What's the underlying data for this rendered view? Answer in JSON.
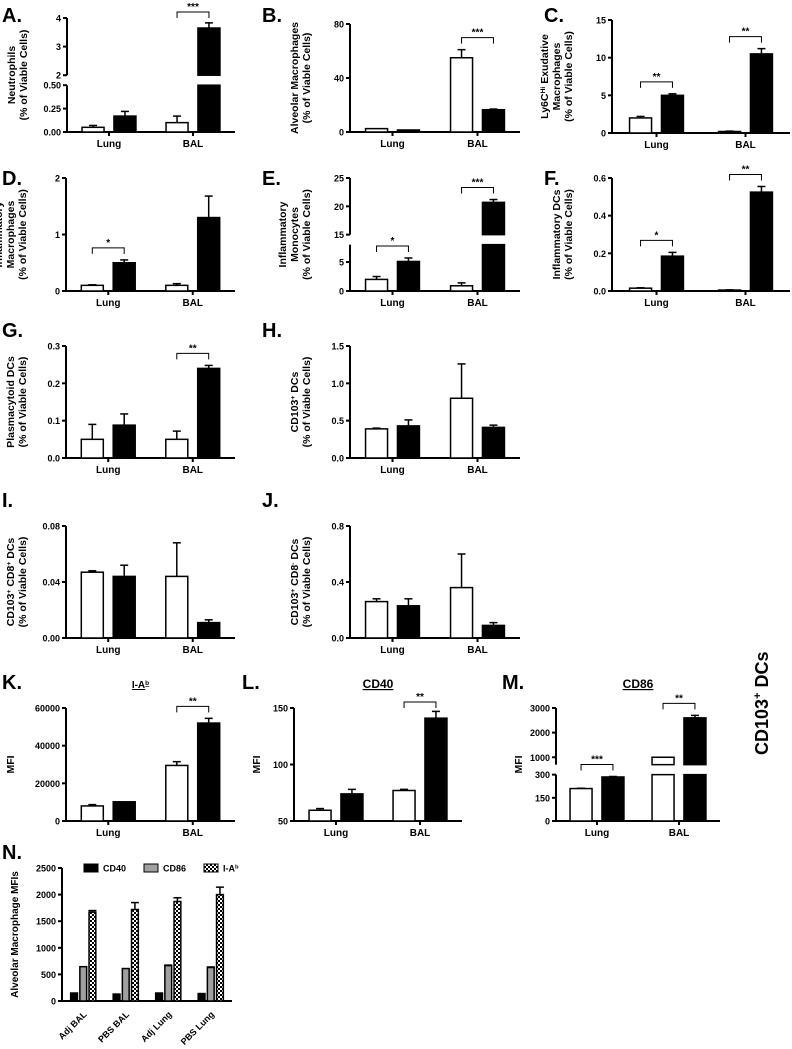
{
  "figure": {
    "side_label": "CD103",
    "side_label_sup": "+",
    "side_label_suffix": " DCs"
  },
  "colors": {
    "open": "#ffffff",
    "filled": "#000000",
    "cd86": "#a0a0a0",
    "axis": "#000000"
  },
  "chart_data": [
    {
      "id": "A",
      "panel_label": "A.",
      "type": "bar",
      "title": "",
      "ylabel_lines": [
        "Neutrophils",
        "(% of Viable Cells)"
      ],
      "categories": [
        "Lung",
        "BAL"
      ],
      "series": [
        {
          "name": "open",
          "values": [
            0.05,
            0.1
          ],
          "errors": [
            0.02,
            0.07
          ]
        },
        {
          "name": "filled",
          "values": [
            0.17,
            3.65
          ],
          "errors": [
            0.05,
            0.18
          ]
        }
      ],
      "broken_axis": {
        "lower": [
          0,
          0.5
        ],
        "upper": [
          2,
          4
        ]
      },
      "yticks_lower": [
        "0.00",
        "0.25",
        "0.50"
      ],
      "yticks_upper": [
        "2",
        "3",
        "4"
      ],
      "significance": [
        {
          "category": "BAL",
          "label": "***"
        }
      ]
    },
    {
      "id": "B",
      "panel_label": "B.",
      "type": "bar",
      "title": "",
      "ylabel_lines": [
        "Alveolar Macrophages",
        "(% of Viable Cells)"
      ],
      "categories": [
        "Lung",
        "BAL"
      ],
      "series": [
        {
          "name": "open",
          "values": [
            2.5,
            55
          ],
          "errors": [
            0,
            6
          ]
        },
        {
          "name": "filled",
          "values": [
            1.5,
            16.5
          ],
          "errors": [
            0,
            0.5
          ]
        }
      ],
      "ylim": [
        0,
        80
      ],
      "yticks": [
        "0",
        "40",
        "80"
      ],
      "significance": [
        {
          "category": "BAL",
          "label": "***"
        }
      ]
    },
    {
      "id": "C",
      "panel_label": "C.",
      "type": "bar",
      "title": "",
      "ylabel_lines": [
        "Ly6C^Hi Exudative",
        "Macrophages",
        "(% of Viable Cells)"
      ],
      "categories": [
        "Lung",
        "BAL"
      ],
      "series": [
        {
          "name": "open",
          "values": [
            2.0,
            0.2
          ],
          "errors": [
            0.2,
            0.05
          ]
        },
        {
          "name": "filled",
          "values": [
            5.0,
            10.5
          ],
          "errors": [
            0.2,
            0.7
          ]
        }
      ],
      "ylim": [
        0,
        15
      ],
      "yticks": [
        "0",
        "5",
        "10",
        "15"
      ],
      "significance": [
        {
          "category": "Lung",
          "label": "**"
        },
        {
          "category": "BAL",
          "label": "**"
        }
      ]
    },
    {
      "id": "D",
      "panel_label": "D.",
      "type": "bar",
      "title": "",
      "ylabel_lines": [
        "Inflammatory",
        "Macrophages",
        "(% of Viable Cells)"
      ],
      "categories": [
        "Lung",
        "BAL"
      ],
      "series": [
        {
          "name": "open",
          "values": [
            0.1,
            0.1
          ],
          "errors": [
            0.01,
            0.03
          ]
        },
        {
          "name": "filled",
          "values": [
            0.5,
            1.3
          ],
          "errors": [
            0.05,
            0.38
          ]
        }
      ],
      "ylim": [
        0,
        2
      ],
      "yticks": [
        "0",
        "1",
        "2"
      ],
      "significance": [
        {
          "category": "Lung",
          "label": "*"
        }
      ]
    },
    {
      "id": "E",
      "panel_label": "E.",
      "type": "bar",
      "title": "",
      "ylabel_lines": [
        "Inflammatory",
        "Monocytes",
        "(% of Viable Cells)"
      ],
      "categories": [
        "Lung",
        "BAL"
      ],
      "series": [
        {
          "name": "open",
          "values": [
            2.0,
            0.9
          ],
          "errors": [
            0.5,
            0.5
          ]
        },
        {
          "name": "filled",
          "values": [
            5.1,
            20.7
          ],
          "errors": [
            0.6,
            0.5
          ]
        }
      ],
      "broken_axis": {
        "lower": [
          0,
          8
        ],
        "upper": [
          15,
          25
        ]
      },
      "yticks_lower": [
        "0",
        "5"
      ],
      "yticks_upper": [
        "15",
        "20",
        "25"
      ],
      "significance": [
        {
          "category": "Lung",
          "label": "*"
        },
        {
          "category": "BAL",
          "label": "***"
        }
      ]
    },
    {
      "id": "F",
      "panel_label": "F.",
      "type": "bar",
      "title": "",
      "ylabel_lines": [
        "Inflammatory DCs",
        "(% of Viable Cells)"
      ],
      "categories": [
        "Lung",
        "BAL"
      ],
      "series": [
        {
          "name": "open",
          "values": [
            0.015,
            0.005
          ],
          "errors": [
            0.002,
            0.001
          ]
        },
        {
          "name": "filled",
          "values": [
            0.185,
            0.525
          ],
          "errors": [
            0.02,
            0.03
          ]
        }
      ],
      "ylim": [
        0,
        0.6
      ],
      "yticks": [
        "0.0",
        "0.2",
        "0.4",
        "0.6"
      ],
      "significance": [
        {
          "category": "Lung",
          "label": "*"
        },
        {
          "category": "BAL",
          "label": "**"
        }
      ]
    },
    {
      "id": "G",
      "panel_label": "G.",
      "type": "bar",
      "title": "",
      "ylabel_lines": [
        "Plasmacytoid DCs",
        "(% of Viable Cells)"
      ],
      "categories": [
        "Lung",
        "BAL"
      ],
      "series": [
        {
          "name": "open",
          "values": [
            0.05,
            0.05
          ],
          "errors": [
            0.04,
            0.022
          ]
        },
        {
          "name": "filled",
          "values": [
            0.088,
            0.24
          ],
          "errors": [
            0.03,
            0.008
          ]
        }
      ],
      "ylim": [
        0,
        0.3
      ],
      "yticks": [
        "0.0",
        "0.1",
        "0.2",
        "0.3"
      ],
      "significance": [
        {
          "category": "BAL",
          "label": "**"
        }
      ]
    },
    {
      "id": "H",
      "panel_label": "H.",
      "type": "bar",
      "title": "",
      "ylabel_lines": [
        "CD103^+ DCs",
        "(% of Viable Cells)"
      ],
      "categories": [
        "Lung",
        "BAL"
      ],
      "series": [
        {
          "name": "open",
          "values": [
            0.39,
            0.8
          ],
          "errors": [
            0.01,
            0.46
          ]
        },
        {
          "name": "filled",
          "values": [
            0.43,
            0.41
          ],
          "errors": [
            0.08,
            0.03
          ]
        }
      ],
      "ylim": [
        0,
        1.5
      ],
      "yticks": [
        "0.0",
        "0.5",
        "1.0",
        "1.5"
      ],
      "significance": []
    },
    {
      "id": "I",
      "panel_label": "I.",
      "type": "bar",
      "title": "",
      "ylabel_lines": [
        "CD103^+  CD8^+ DCs",
        "(% of Viable Cells)"
      ],
      "categories": [
        "Lung",
        "BAL"
      ],
      "series": [
        {
          "name": "open",
          "values": [
            0.047,
            0.044
          ],
          "errors": [
            0.001,
            0.024
          ]
        },
        {
          "name": "filled",
          "values": [
            0.044,
            0.011
          ],
          "errors": [
            0.008,
            0.002
          ]
        }
      ],
      "ylim": [
        0,
        0.08
      ],
      "yticks": [
        "0.00",
        "0.04",
        "0.08"
      ],
      "significance": []
    },
    {
      "id": "J",
      "panel_label": "J.",
      "type": "bar",
      "title": "",
      "ylabel_lines": [
        "CD103^+  CD8^- DCs",
        "(% of Viable Cells)"
      ],
      "categories": [
        "Lung",
        "BAL"
      ],
      "series": [
        {
          "name": "open",
          "values": [
            0.26,
            0.36
          ],
          "errors": [
            0.02,
            0.24
          ]
        },
        {
          "name": "filled",
          "values": [
            0.23,
            0.09
          ],
          "errors": [
            0.05,
            0.02
          ]
        }
      ],
      "ylim": [
        0,
        0.8
      ],
      "yticks": [
        "0.0",
        "0.4",
        "0.8"
      ],
      "significance": []
    },
    {
      "id": "K",
      "panel_label": "K.",
      "type": "bar",
      "title": "I-A^b",
      "ylabel_lines": [
        "MFI"
      ],
      "categories": [
        "Lung",
        "BAL"
      ],
      "series": [
        {
          "name": "open",
          "values": [
            8000,
            29500
          ],
          "errors": [
            700,
            2000
          ]
        },
        {
          "name": "filled",
          "values": [
            10200,
            52000
          ],
          "errors": [
            0,
            2500
          ]
        }
      ],
      "ylim": [
        0,
        60000
      ],
      "yticks": [
        "0",
        "20000",
        "40000",
        "60000"
      ],
      "significance": [
        {
          "category": "BAL",
          "label": "**"
        }
      ]
    },
    {
      "id": "L",
      "panel_label": "L.",
      "type": "bar",
      "title": "CD40",
      "ylabel_lines": [
        "MFI"
      ],
      "categories": [
        "Lung",
        "BAL"
      ],
      "series": [
        {
          "name": "open",
          "values": [
            59.5,
            77
          ],
          "errors": [
            1.5,
            1
          ]
        },
        {
          "name": "filled",
          "values": [
            74,
            141
          ],
          "errors": [
            4,
            6
          ]
        }
      ],
      "ylim": [
        50,
        150
      ],
      "yticks": [
        "50",
        "100",
        "150"
      ],
      "significance": [
        {
          "category": "BAL",
          "label": "**"
        }
      ]
    },
    {
      "id": "M",
      "panel_label": "M.",
      "type": "bar",
      "title": "CD86",
      "ylabel_lines": [
        "MFI"
      ],
      "categories": [
        "Lung",
        "BAL"
      ],
      "series": [
        {
          "name": "open",
          "values": [
            210,
            1000
          ],
          "errors": [
            2,
            0
          ]
        },
        {
          "name": "filled",
          "values": [
            285,
            2600
          ],
          "errors": [
            3,
            100
          ]
        }
      ],
      "broken_axis": {
        "lower": [
          0,
          300
        ],
        "upper": [
          700,
          3000
        ]
      },
      "yticks_lower": [
        "0",
        "150",
        "300"
      ],
      "yticks_upper": [
        "1000",
        "2000",
        "3000"
      ],
      "significance": [
        {
          "category": "Lung",
          "label": "***"
        },
        {
          "category": "BAL",
          "label": "**"
        }
      ]
    },
    {
      "id": "N",
      "panel_label": "N.",
      "type": "bar",
      "title": "",
      "ylabel_lines": [
        "Alveolar Macrophage MFIs"
      ],
      "categories": [
        "Adj BAL",
        "PBS BAL",
        "Adj Lung",
        "PBS Lung"
      ],
      "legend": [
        "CD40",
        "CD86",
        "I-A^b"
      ],
      "legend_position": "top",
      "series": [
        {
          "name": "CD40",
          "values": [
            150,
            130,
            150,
            140
          ],
          "errors": [
            0,
            0,
            0,
            0
          ]
        },
        {
          "name": "CD86",
          "values": [
            645,
            610,
            665,
            630
          ],
          "errors": [
            0,
            0,
            10,
            10
          ]
        },
        {
          "name": "I-A^b",
          "values": [
            1670,
            1720,
            1870,
            2000
          ],
          "errors": [
            30,
            130,
            70,
            140
          ]
        }
      ],
      "ylim": [
        0,
        2500
      ],
      "yticks": [
        "0",
        "500",
        "1000",
        "1500",
        "2000",
        "2500"
      ],
      "significance": []
    }
  ]
}
